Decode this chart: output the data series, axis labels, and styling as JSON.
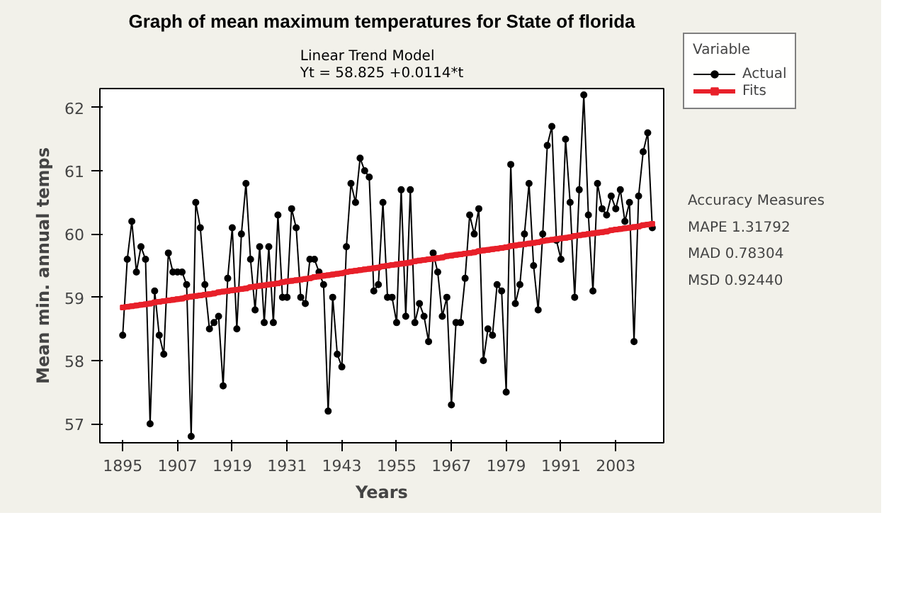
{
  "chart_data": {
    "type": "line",
    "title": "Graph of mean maximum temperatures for State of florida",
    "subtitle": "Linear Trend Model\nYt = 58.825 +0.0114*t",
    "xlabel": "Years",
    "ylabel": "Mean min. annual temps",
    "legend_title": "Variable",
    "legend": "right",
    "grid": false,
    "x": [
      1895,
      1896,
      1897,
      1898,
      1899,
      1900,
      1901,
      1902,
      1903,
      1904,
      1905,
      1906,
      1907,
      1908,
      1909,
      1910,
      1911,
      1912,
      1913,
      1914,
      1915,
      1916,
      1917,
      1918,
      1919,
      1920,
      1921,
      1922,
      1923,
      1924,
      1925,
      1926,
      1927,
      1928,
      1929,
      1930,
      1931,
      1932,
      1933,
      1934,
      1935,
      1936,
      1937,
      1938,
      1939,
      1940,
      1941,
      1942,
      1943,
      1944,
      1945,
      1946,
      1947,
      1948,
      1949,
      1950,
      1951,
      1952,
      1953,
      1954,
      1955,
      1956,
      1957,
      1958,
      1959,
      1960,
      1961,
      1962,
      1963,
      1964,
      1965,
      1966,
      1967,
      1968,
      1969,
      1970,
      1971,
      1972,
      1973,
      1974,
      1975,
      1976,
      1977,
      1978,
      1979,
      1980,
      1981,
      1982,
      1983,
      1984,
      1985,
      1986,
      1987,
      1988,
      1989,
      1990,
      1991,
      1992,
      1993,
      1994,
      1995,
      1996,
      1997,
      1998,
      1999,
      2000,
      2001,
      2002,
      2003,
      2004,
      2005,
      2006,
      2007,
      2008,
      2009,
      2010,
      2011
    ],
    "series": [
      {
        "name": "Actual",
        "color": "#000000",
        "marker": "circle",
        "values": [
          58.4,
          59.6,
          60.2,
          59.4,
          59.8,
          59.6,
          57.0,
          59.1,
          58.4,
          58.1,
          59.7,
          59.4,
          59.4,
          59.4,
          59.2,
          56.8,
          60.5,
          60.1,
          59.2,
          58.5,
          58.6,
          58.7,
          57.6,
          59.3,
          60.1,
          58.5,
          60.0,
          60.8,
          59.6,
          58.8,
          59.8,
          58.6,
          59.8,
          58.6,
          60.3,
          59.0,
          59.0,
          60.4,
          60.1,
          59.0,
          58.9,
          59.6,
          59.6,
          59.4,
          59.2,
          57.2,
          59.0,
          58.1,
          57.9,
          59.8,
          60.8,
          60.5,
          61.2,
          61.0,
          60.9,
          59.1,
          59.2,
          60.5,
          59.0,
          59.0,
          58.6,
          60.7,
          58.7,
          60.7,
          58.6,
          58.9,
          58.7,
          58.3,
          59.7,
          59.4,
          58.7,
          59.0,
          57.3,
          58.6,
          58.6,
          59.3,
          60.3,
          60.0,
          60.4,
          58.0,
          58.5,
          58.4,
          59.2,
          59.1,
          57.5,
          61.1,
          58.9,
          59.2,
          60.0,
          60.8,
          59.5,
          58.8,
          60.0,
          61.4,
          61.7,
          59.9,
          59.6,
          61.5,
          60.5,
          59.0,
          60.7,
          62.2,
          60.3,
          59.1,
          60.8,
          60.4,
          60.3,
          60.6,
          60.4,
          60.7,
          60.2,
          60.5,
          58.3,
          60.6,
          61.3,
          61.6,
          60.1
        ]
      },
      {
        "name": "Fits",
        "color": "#e8202a",
        "marker": "square",
        "values": [
          58.84,
          58.85,
          58.86,
          58.87,
          58.88,
          58.89,
          58.9,
          58.92,
          58.93,
          58.94,
          58.95,
          58.96,
          58.97,
          58.98,
          59.0,
          59.01,
          59.02,
          59.03,
          59.04,
          59.05,
          59.06,
          59.08,
          59.09,
          59.1,
          59.11,
          59.12,
          59.13,
          59.14,
          59.16,
          59.17,
          59.18,
          59.19,
          59.2,
          59.21,
          59.22,
          59.24,
          59.25,
          59.26,
          59.27,
          59.28,
          59.29,
          59.3,
          59.32,
          59.33,
          59.34,
          59.35,
          59.36,
          59.37,
          59.38,
          59.4,
          59.41,
          59.42,
          59.43,
          59.44,
          59.45,
          59.46,
          59.47,
          59.49,
          59.5,
          59.51,
          59.52,
          59.53,
          59.54,
          59.55,
          59.57,
          59.58,
          59.59,
          59.6,
          59.61,
          59.62,
          59.63,
          59.65,
          59.66,
          59.67,
          59.68,
          59.69,
          59.7,
          59.71,
          59.73,
          59.74,
          59.75,
          59.76,
          59.77,
          59.78,
          59.79,
          59.81,
          59.82,
          59.83,
          59.84,
          59.85,
          59.86,
          59.87,
          59.89,
          59.9,
          59.91,
          59.92,
          59.93,
          59.94,
          59.95,
          59.97,
          59.98,
          59.99,
          60.0,
          60.01,
          60.02,
          60.03,
          60.04,
          60.06,
          60.07,
          60.08,
          60.09,
          60.1,
          60.11,
          60.12,
          60.14,
          60.15,
          60.16
        ]
      }
    ],
    "xlim": [
      1890,
      2013.5
    ],
    "ylim": [
      56.7,
      62.3
    ],
    "xticks": [
      1895,
      1907,
      1919,
      1931,
      1943,
      1955,
      1967,
      1979,
      1991,
      2003
    ],
    "yticks": [
      57,
      58,
      59,
      60,
      61,
      62
    ],
    "annotations": [
      "Accuracy Measures",
      "MAPE    1.31792",
      "MAD     0.78304",
      "MSD     0.92440"
    ]
  }
}
